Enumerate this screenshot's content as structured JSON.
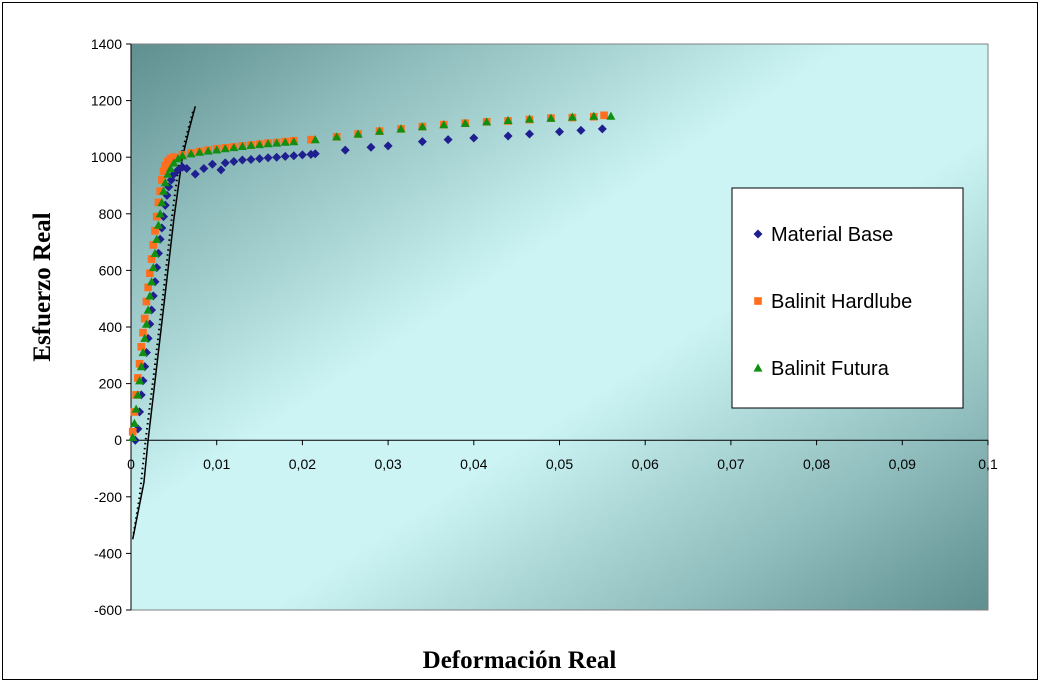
{
  "chart_data": {
    "type": "scatter",
    "title": "",
    "xlabel": "Deformación Real",
    "ylabel": "Esfuerzo Real",
    "xlim": [
      0,
      0.1
    ],
    "ylim": [
      -600,
      1400
    ],
    "x_ticks": [
      "0",
      "0,01",
      "0,02",
      "0,03",
      "0,04",
      "0,05",
      "0,06",
      "0,07",
      "0,08",
      "0,09",
      "0,1"
    ],
    "y_ticks": [
      "1400",
      "1200",
      "1000",
      "800",
      "600",
      "400",
      "200",
      "0",
      "-200",
      "-400",
      "-600"
    ],
    "grid": false,
    "legend_position": "right",
    "series": [
      {
        "name": "Material Base",
        "marker": "diamond",
        "color": "#1f1f8f",
        "points": [
          [
            0.0005,
            0
          ],
          [
            0.0008,
            40
          ],
          [
            0.001,
            100
          ],
          [
            0.0012,
            160
          ],
          [
            0.0014,
            210
          ],
          [
            0.0016,
            260
          ],
          [
            0.0018,
            310
          ],
          [
            0.002,
            360
          ],
          [
            0.0022,
            410
          ],
          [
            0.0024,
            460
          ],
          [
            0.0026,
            510
          ],
          [
            0.0028,
            560
          ],
          [
            0.003,
            610
          ],
          [
            0.0032,
            660
          ],
          [
            0.0034,
            710
          ],
          [
            0.0036,
            750
          ],
          [
            0.0038,
            790
          ],
          [
            0.004,
            830
          ],
          [
            0.0042,
            865
          ],
          [
            0.0044,
            895
          ],
          [
            0.0047,
            920
          ],
          [
            0.005,
            940
          ],
          [
            0.0055,
            955
          ],
          [
            0.006,
            965
          ],
          [
            0.0065,
            960
          ],
          [
            0.0075,
            940
          ],
          [
            0.0085,
            960
          ],
          [
            0.0095,
            975
          ],
          [
            0.0105,
            955
          ],
          [
            0.011,
            980
          ],
          [
            0.012,
            985
          ],
          [
            0.013,
            990
          ],
          [
            0.014,
            992
          ],
          [
            0.015,
            995
          ],
          [
            0.016,
            998
          ],
          [
            0.017,
            1000
          ],
          [
            0.018,
            1003
          ],
          [
            0.019,
            1005
          ],
          [
            0.02,
            1008
          ],
          [
            0.021,
            1010
          ],
          [
            0.0215,
            1012
          ],
          [
            0.025,
            1025
          ],
          [
            0.028,
            1035
          ],
          [
            0.03,
            1040
          ],
          [
            0.034,
            1055
          ],
          [
            0.037,
            1062
          ],
          [
            0.04,
            1068
          ],
          [
            0.044,
            1075
          ],
          [
            0.0465,
            1082
          ],
          [
            0.05,
            1090
          ],
          [
            0.0525,
            1095
          ],
          [
            0.055,
            1100
          ]
        ]
      },
      {
        "name": "Balinit Hardlube",
        "marker": "square",
        "color": "#ff6f1e",
        "points": [
          [
            0.0002,
            30
          ],
          [
            0.0004,
            100
          ],
          [
            0.0006,
            160
          ],
          [
            0.0008,
            220
          ],
          [
            0.001,
            270
          ],
          [
            0.0012,
            330
          ],
          [
            0.0014,
            380
          ],
          [
            0.0016,
            430
          ],
          [
            0.0018,
            490
          ],
          [
            0.002,
            540
          ],
          [
            0.0022,
            590
          ],
          [
            0.0024,
            640
          ],
          [
            0.0026,
            690
          ],
          [
            0.0028,
            740
          ],
          [
            0.003,
            790
          ],
          [
            0.0032,
            840
          ],
          [
            0.0034,
            880
          ],
          [
            0.0036,
            920
          ],
          [
            0.0038,
            950
          ],
          [
            0.004,
            970
          ],
          [
            0.0043,
            985
          ],
          [
            0.0046,
            995
          ],
          [
            0.005,
            1000
          ],
          [
            0.006,
            1008
          ],
          [
            0.007,
            1015
          ],
          [
            0.008,
            1020
          ],
          [
            0.009,
            1025
          ],
          [
            0.01,
            1030
          ],
          [
            0.011,
            1033
          ],
          [
            0.012,
            1036
          ],
          [
            0.013,
            1040
          ],
          [
            0.014,
            1043
          ],
          [
            0.015,
            1046
          ],
          [
            0.016,
            1050
          ],
          [
            0.017,
            1052
          ],
          [
            0.018,
            1055
          ],
          [
            0.019,
            1058
          ],
          [
            0.021,
            1062
          ],
          [
            0.024,
            1072
          ],
          [
            0.0265,
            1082
          ],
          [
            0.029,
            1092
          ],
          [
            0.0315,
            1100
          ],
          [
            0.034,
            1108
          ],
          [
            0.0365,
            1115
          ],
          [
            0.039,
            1120
          ],
          [
            0.0415,
            1125
          ],
          [
            0.044,
            1128
          ],
          [
            0.0465,
            1133
          ],
          [
            0.049,
            1138
          ],
          [
            0.0515,
            1140
          ],
          [
            0.054,
            1143
          ],
          [
            0.0552,
            1148
          ]
        ]
      },
      {
        "name": "Balinit Futura",
        "marker": "triangle",
        "color": "#108f10",
        "points": [
          [
            0.0002,
            10
          ],
          [
            0.0004,
            60
          ],
          [
            0.0006,
            110
          ],
          [
            0.0008,
            160
          ],
          [
            0.001,
            210
          ],
          [
            0.0012,
            260
          ],
          [
            0.0014,
            310
          ],
          [
            0.0016,
            360
          ],
          [
            0.0018,
            410
          ],
          [
            0.002,
            460
          ],
          [
            0.0022,
            510
          ],
          [
            0.0024,
            560
          ],
          [
            0.0026,
            610
          ],
          [
            0.0028,
            660
          ],
          [
            0.003,
            710
          ],
          [
            0.0032,
            760
          ],
          [
            0.0034,
            800
          ],
          [
            0.0036,
            840
          ],
          [
            0.0038,
            880
          ],
          [
            0.004,
            910
          ],
          [
            0.0043,
            940
          ],
          [
            0.0046,
            960
          ],
          [
            0.005,
            980
          ],
          [
            0.0055,
            995
          ],
          [
            0.006,
            1005
          ],
          [
            0.007,
            1012
          ],
          [
            0.008,
            1018
          ],
          [
            0.009,
            1022
          ],
          [
            0.01,
            1026
          ],
          [
            0.011,
            1030
          ],
          [
            0.012,
            1034
          ],
          [
            0.013,
            1038
          ],
          [
            0.014,
            1042
          ],
          [
            0.015,
            1045
          ],
          [
            0.016,
            1048
          ],
          [
            0.017,
            1050
          ],
          [
            0.018,
            1053
          ],
          [
            0.019,
            1055
          ],
          [
            0.0215,
            1062
          ],
          [
            0.024,
            1072
          ],
          [
            0.0265,
            1082
          ],
          [
            0.029,
            1092
          ],
          [
            0.0315,
            1100
          ],
          [
            0.034,
            1108
          ],
          [
            0.0365,
            1115
          ],
          [
            0.039,
            1120
          ],
          [
            0.0415,
            1125
          ],
          [
            0.044,
            1130
          ],
          [
            0.0465,
            1135
          ],
          [
            0.049,
            1138
          ],
          [
            0.0515,
            1142
          ],
          [
            0.054,
            1145
          ],
          [
            0.056,
            1145
          ]
        ]
      }
    ],
    "reference_lines": [
      {
        "style": "solid",
        "color": "#000000",
        "points": [
          [
            0.0002,
            -350
          ],
          [
            0.0015,
            -150
          ],
          [
            0.002,
            0
          ],
          [
            0.003,
            260
          ],
          [
            0.004,
            520
          ],
          [
            0.005,
            780
          ],
          [
            0.006,
            1000
          ],
          [
            0.0068,
            1100
          ],
          [
            0.0075,
            1180
          ]
        ]
      },
      {
        "style": "dotted",
        "color": "#000000",
        "points": [
          [
            0.0003,
            -330
          ],
          [
            0.001,
            -200
          ],
          [
            0.0017,
            0
          ],
          [
            0.0027,
            240
          ],
          [
            0.0037,
            500
          ],
          [
            0.0047,
            770
          ],
          [
            0.0056,
            980
          ],
          [
            0.0065,
            1080
          ],
          [
            0.0073,
            1170
          ]
        ]
      }
    ]
  }
}
